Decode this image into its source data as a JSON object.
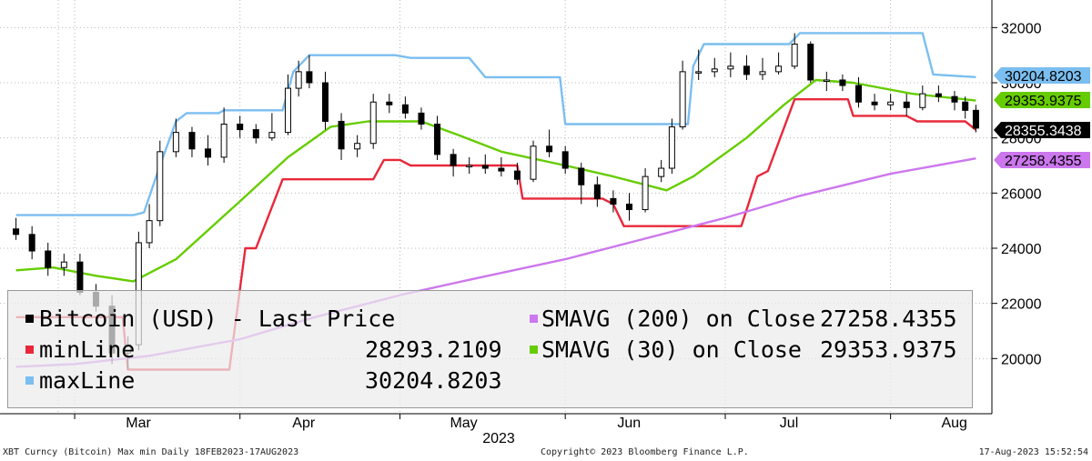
{
  "chart_data": {
    "type": "line",
    "title": "",
    "x_axis": {
      "tick_labels": [
        "Mar",
        "Apr",
        "May",
        "Jun",
        "Jul",
        "Aug"
      ],
      "year_label": "2023",
      "range": [
        "2023-02-18",
        "2023-08-17"
      ]
    },
    "y_axis": {
      "position": "right",
      "ylim": [
        18000,
        33000
      ],
      "tick_labels": [
        "20000",
        "22000",
        "24000",
        "26000",
        "28000",
        "30000",
        "32000"
      ]
    },
    "grid": true,
    "legend_placement": "bottom-left",
    "value_labels": [
      {
        "text": "30204.8203",
        "color": "#7bbef0",
        "value": 30204.8203
      },
      {
        "text": "29353.9375",
        "color": "#66cc00",
        "value": 29353.9375
      },
      {
        "text": "28355.3438",
        "color": "#000000",
        "value": 28355.3438
      },
      {
        "text": "27258.4355",
        "color": "#cc77ee",
        "value": 27258.4355
      }
    ],
    "series": [
      {
        "name": "Bitcoin (USD) - Last Price",
        "style": "candlestick",
        "color": "#000000",
        "last_value": "28355.3438",
        "dates": [
          "2023-02-18",
          "2023-02-21",
          "2023-02-24",
          "2023-02-27",
          "2023-03-02",
          "2023-03-05",
          "2023-03-08",
          "2023-03-11",
          "2023-03-13",
          "2023-03-15",
          "2023-03-17",
          "2023-03-20",
          "2023-03-23",
          "2023-03-26",
          "2023-03-29",
          "2023-04-01",
          "2023-04-04",
          "2023-04-07",
          "2023-04-10",
          "2023-04-12",
          "2023-04-14",
          "2023-04-17",
          "2023-04-20",
          "2023-04-23",
          "2023-04-26",
          "2023-04-29",
          "2023-05-02",
          "2023-05-05",
          "2023-05-08",
          "2023-05-11",
          "2023-05-14",
          "2023-05-17",
          "2023-05-20",
          "2023-05-23",
          "2023-05-26",
          "2023-05-29",
          "2023-06-01",
          "2023-06-04",
          "2023-06-07",
          "2023-06-10",
          "2023-06-13",
          "2023-06-16",
          "2023-06-19",
          "2023-06-21",
          "2023-06-23",
          "2023-06-26",
          "2023-06-29",
          "2023-07-02",
          "2023-07-05",
          "2023-07-08",
          "2023-07-11",
          "2023-07-14",
          "2023-07-17",
          "2023-07-20",
          "2023-07-23",
          "2023-07-26",
          "2023-07-29",
          "2023-08-01",
          "2023-08-04",
          "2023-08-07",
          "2023-08-10",
          "2023-08-13",
          "2023-08-15",
          "2023-08-17"
        ],
        "open": [
          24700,
          24500,
          23900,
          23300,
          23500,
          22400,
          21900,
          20200,
          20500,
          24200,
          25000,
          27500,
          28200,
          27600,
          27300,
          28500,
          28300,
          28000,
          28200,
          29800,
          30400,
          30000,
          28600,
          27600,
          27800,
          29300,
          29200,
          28900,
          28500,
          27400,
          27000,
          27000,
          26900,
          26800,
          26500,
          27700,
          27500,
          26900,
          26300,
          25800,
          25600,
          25400,
          26600,
          26900,
          28400,
          30400,
          30400,
          30500,
          30600,
          30300,
          30400,
          30600,
          31400,
          30100,
          30100,
          29900,
          29300,
          29200,
          29300,
          29100,
          29600,
          29500,
          29300,
          29000
        ],
        "close": [
          24500,
          23900,
          23300,
          23500,
          22400,
          21900,
          20200,
          20500,
          24200,
          25000,
          27500,
          28200,
          27600,
          27300,
          28500,
          28300,
          28000,
          28200,
          29800,
          30400,
          30000,
          28600,
          27600,
          27800,
          29300,
          29200,
          28900,
          28500,
          27400,
          27000,
          27000,
          26900,
          26800,
          26500,
          27700,
          27500,
          26900,
          26300,
          25800,
          25600,
          25400,
          26600,
          26900,
          28400,
          30400,
          30400,
          30500,
          30600,
          30300,
          30400,
          30600,
          31400,
          30100,
          30100,
          29900,
          29300,
          29200,
          29300,
          29100,
          29600,
          29500,
          29300,
          29000,
          28355
        ],
        "high": [
          25100,
          24800,
          24200,
          23800,
          23800,
          22700,
          22300,
          20800,
          24600,
          25600,
          27900,
          28700,
          28400,
          28100,
          29100,
          28800,
          28500,
          28900,
          30300,
          30800,
          31000,
          30400,
          28900,
          28100,
          29600,
          29600,
          29500,
          29100,
          28800,
          27600,
          27300,
          27400,
          27300,
          27100,
          27900,
          28300,
          27700,
          27100,
          26600,
          26100,
          26000,
          26900,
          27200,
          28700,
          30800,
          31200,
          30900,
          31100,
          31000,
          30900,
          31100,
          31800,
          31500,
          30400,
          30300,
          30200,
          29600,
          29600,
          29600,
          29900,
          29900,
          29700,
          29500,
          29200
        ],
        "low": [
          24300,
          23600,
          23000,
          23000,
          22300,
          21700,
          19800,
          19600,
          20300,
          24000,
          24800,
          27300,
          27300,
          27000,
          27100,
          28000,
          27800,
          27900,
          28100,
          29500,
          29800,
          28300,
          27200,
          27300,
          27600,
          28900,
          28700,
          28300,
          27200,
          26600,
          26700,
          26700,
          26600,
          26300,
          26400,
          27300,
          26700,
          25600,
          25500,
          25300,
          25000,
          25300,
          26400,
          26700,
          28300,
          30100,
          30200,
          30200,
          30100,
          30100,
          30300,
          30500,
          30000,
          29700,
          29700,
          29100,
          29000,
          29000,
          28800,
          29000,
          29300,
          29000,
          28700,
          28200
        ]
      },
      {
        "name": "minLine",
        "color": "#e8283a",
        "last_value": "28293.2109",
        "points": [
          [
            "2023-02-18",
            21500
          ],
          [
            "2023-03-10",
            21500
          ],
          [
            "2023-03-11",
            19600
          ],
          [
            "2023-03-30",
            19600
          ],
          [
            "2023-04-02",
            24000
          ],
          [
            "2023-04-04",
            24000
          ],
          [
            "2023-04-09",
            26500
          ],
          [
            "2023-04-26",
            26500
          ],
          [
            "2023-04-28",
            27200
          ],
          [
            "2023-05-01",
            27200
          ],
          [
            "2023-05-03",
            27000
          ],
          [
            "2023-05-23",
            27000
          ],
          [
            "2023-05-24",
            25800
          ],
          [
            "2023-06-08",
            25800
          ],
          [
            "2023-06-10",
            25600
          ],
          [
            "2023-06-12",
            24800
          ],
          [
            "2023-07-04",
            24800
          ],
          [
            "2023-07-07",
            26600
          ],
          [
            "2023-07-09",
            26800
          ],
          [
            "2023-07-14",
            29400
          ],
          [
            "2023-07-24",
            29400
          ],
          [
            "2023-07-25",
            28800
          ],
          [
            "2023-08-04",
            28800
          ],
          [
            "2023-08-06",
            28600
          ],
          [
            "2023-08-15",
            28600
          ],
          [
            "2023-08-17",
            28293.2109
          ]
        ]
      },
      {
        "name": "maxLine",
        "color": "#7bbef0",
        "last_value": "30204.8203",
        "points": [
          [
            "2023-02-18",
            25200
          ],
          [
            "2023-03-12",
            25200
          ],
          [
            "2023-03-14",
            25300
          ],
          [
            "2023-03-17",
            27000
          ],
          [
            "2023-03-20",
            28600
          ],
          [
            "2023-03-22",
            28900
          ],
          [
            "2023-03-28",
            28900
          ],
          [
            "2023-03-29",
            29000
          ],
          [
            "2023-04-09",
            29000
          ],
          [
            "2023-04-11",
            30400
          ],
          [
            "2023-04-14",
            31000
          ],
          [
            "2023-04-30",
            31000
          ],
          [
            "2023-05-03",
            30900
          ],
          [
            "2023-05-14",
            30900
          ],
          [
            "2023-05-17",
            30200
          ],
          [
            "2023-05-31",
            30200
          ],
          [
            "2023-06-01",
            28500
          ],
          [
            "2023-06-24",
            28500
          ],
          [
            "2023-06-25",
            30600
          ],
          [
            "2023-06-27",
            31400
          ],
          [
            "2023-07-13",
            31400
          ],
          [
            "2023-07-15",
            31800
          ],
          [
            "2023-08-07",
            31800
          ],
          [
            "2023-08-09",
            30300
          ],
          [
            "2023-08-17",
            30204.8203
          ]
        ]
      },
      {
        "name": "SMAVG (200)  on Close",
        "color": "#cc77ee",
        "last_value": "27258.4355",
        "points": [
          [
            "2023-02-18",
            19700
          ],
          [
            "2023-03-01",
            19800
          ],
          [
            "2023-03-15",
            20100
          ],
          [
            "2023-04-01",
            20700
          ],
          [
            "2023-04-15",
            21500
          ],
          [
            "2023-05-01",
            22300
          ],
          [
            "2023-05-15",
            22900
          ],
          [
            "2023-06-01",
            23600
          ],
          [
            "2023-06-15",
            24300
          ],
          [
            "2023-07-01",
            25100
          ],
          [
            "2023-07-15",
            25900
          ],
          [
            "2023-08-01",
            26700
          ],
          [
            "2023-08-17",
            27258.4355
          ]
        ]
      },
      {
        "name": "SMAVG (30)  on Close",
        "color": "#66cc00",
        "last_value": "29353.9375",
        "points": [
          [
            "2023-02-18",
            23200
          ],
          [
            "2023-02-25",
            23300
          ],
          [
            "2023-03-05",
            23000
          ],
          [
            "2023-03-12",
            22800
          ],
          [
            "2023-03-20",
            23600
          ],
          [
            "2023-04-01",
            25700
          ],
          [
            "2023-04-10",
            27300
          ],
          [
            "2023-04-18",
            28400
          ],
          [
            "2023-04-25",
            28600
          ],
          [
            "2023-05-05",
            28600
          ],
          [
            "2023-05-12",
            28100
          ],
          [
            "2023-05-20",
            27500
          ],
          [
            "2023-06-01",
            27000
          ],
          [
            "2023-06-10",
            26600
          ],
          [
            "2023-06-16",
            26300
          ],
          [
            "2023-06-20",
            26100
          ],
          [
            "2023-06-25",
            26600
          ],
          [
            "2023-07-05",
            28000
          ],
          [
            "2023-07-12",
            29200
          ],
          [
            "2023-07-18",
            30100
          ],
          [
            "2023-07-25",
            30000
          ],
          [
            "2023-08-05",
            29600
          ],
          [
            "2023-08-17",
            29353.9375
          ]
        ]
      }
    ]
  },
  "legend": {
    "rows": [
      {
        "label": "Bitcoin (USD)  - Last Price",
        "value": "",
        "color": "#000000"
      },
      {
        "label": "minLine",
        "value": "28293.2109",
        "color": "#e8283a"
      },
      {
        "label": "maxLine",
        "value": "30204.8203",
        "color": "#7bbef0"
      }
    ],
    "right_rows": [
      {
        "label": "SMAVG (200)  on Close",
        "value": "27258.4355",
        "color": "#cc77ee"
      },
      {
        "label": "SMAVG (30)  on Close",
        "value": "29353.9375",
        "color": "#66cc00"
      }
    ]
  },
  "footer": {
    "left": "XBT Curncy (Bitcoin) Max min  Daily 18FEB2023-17AUG2023",
    "center": "Copyright© 2023 Bloomberg Finance L.P.",
    "right": "17-Aug-2023 15:52:54"
  }
}
